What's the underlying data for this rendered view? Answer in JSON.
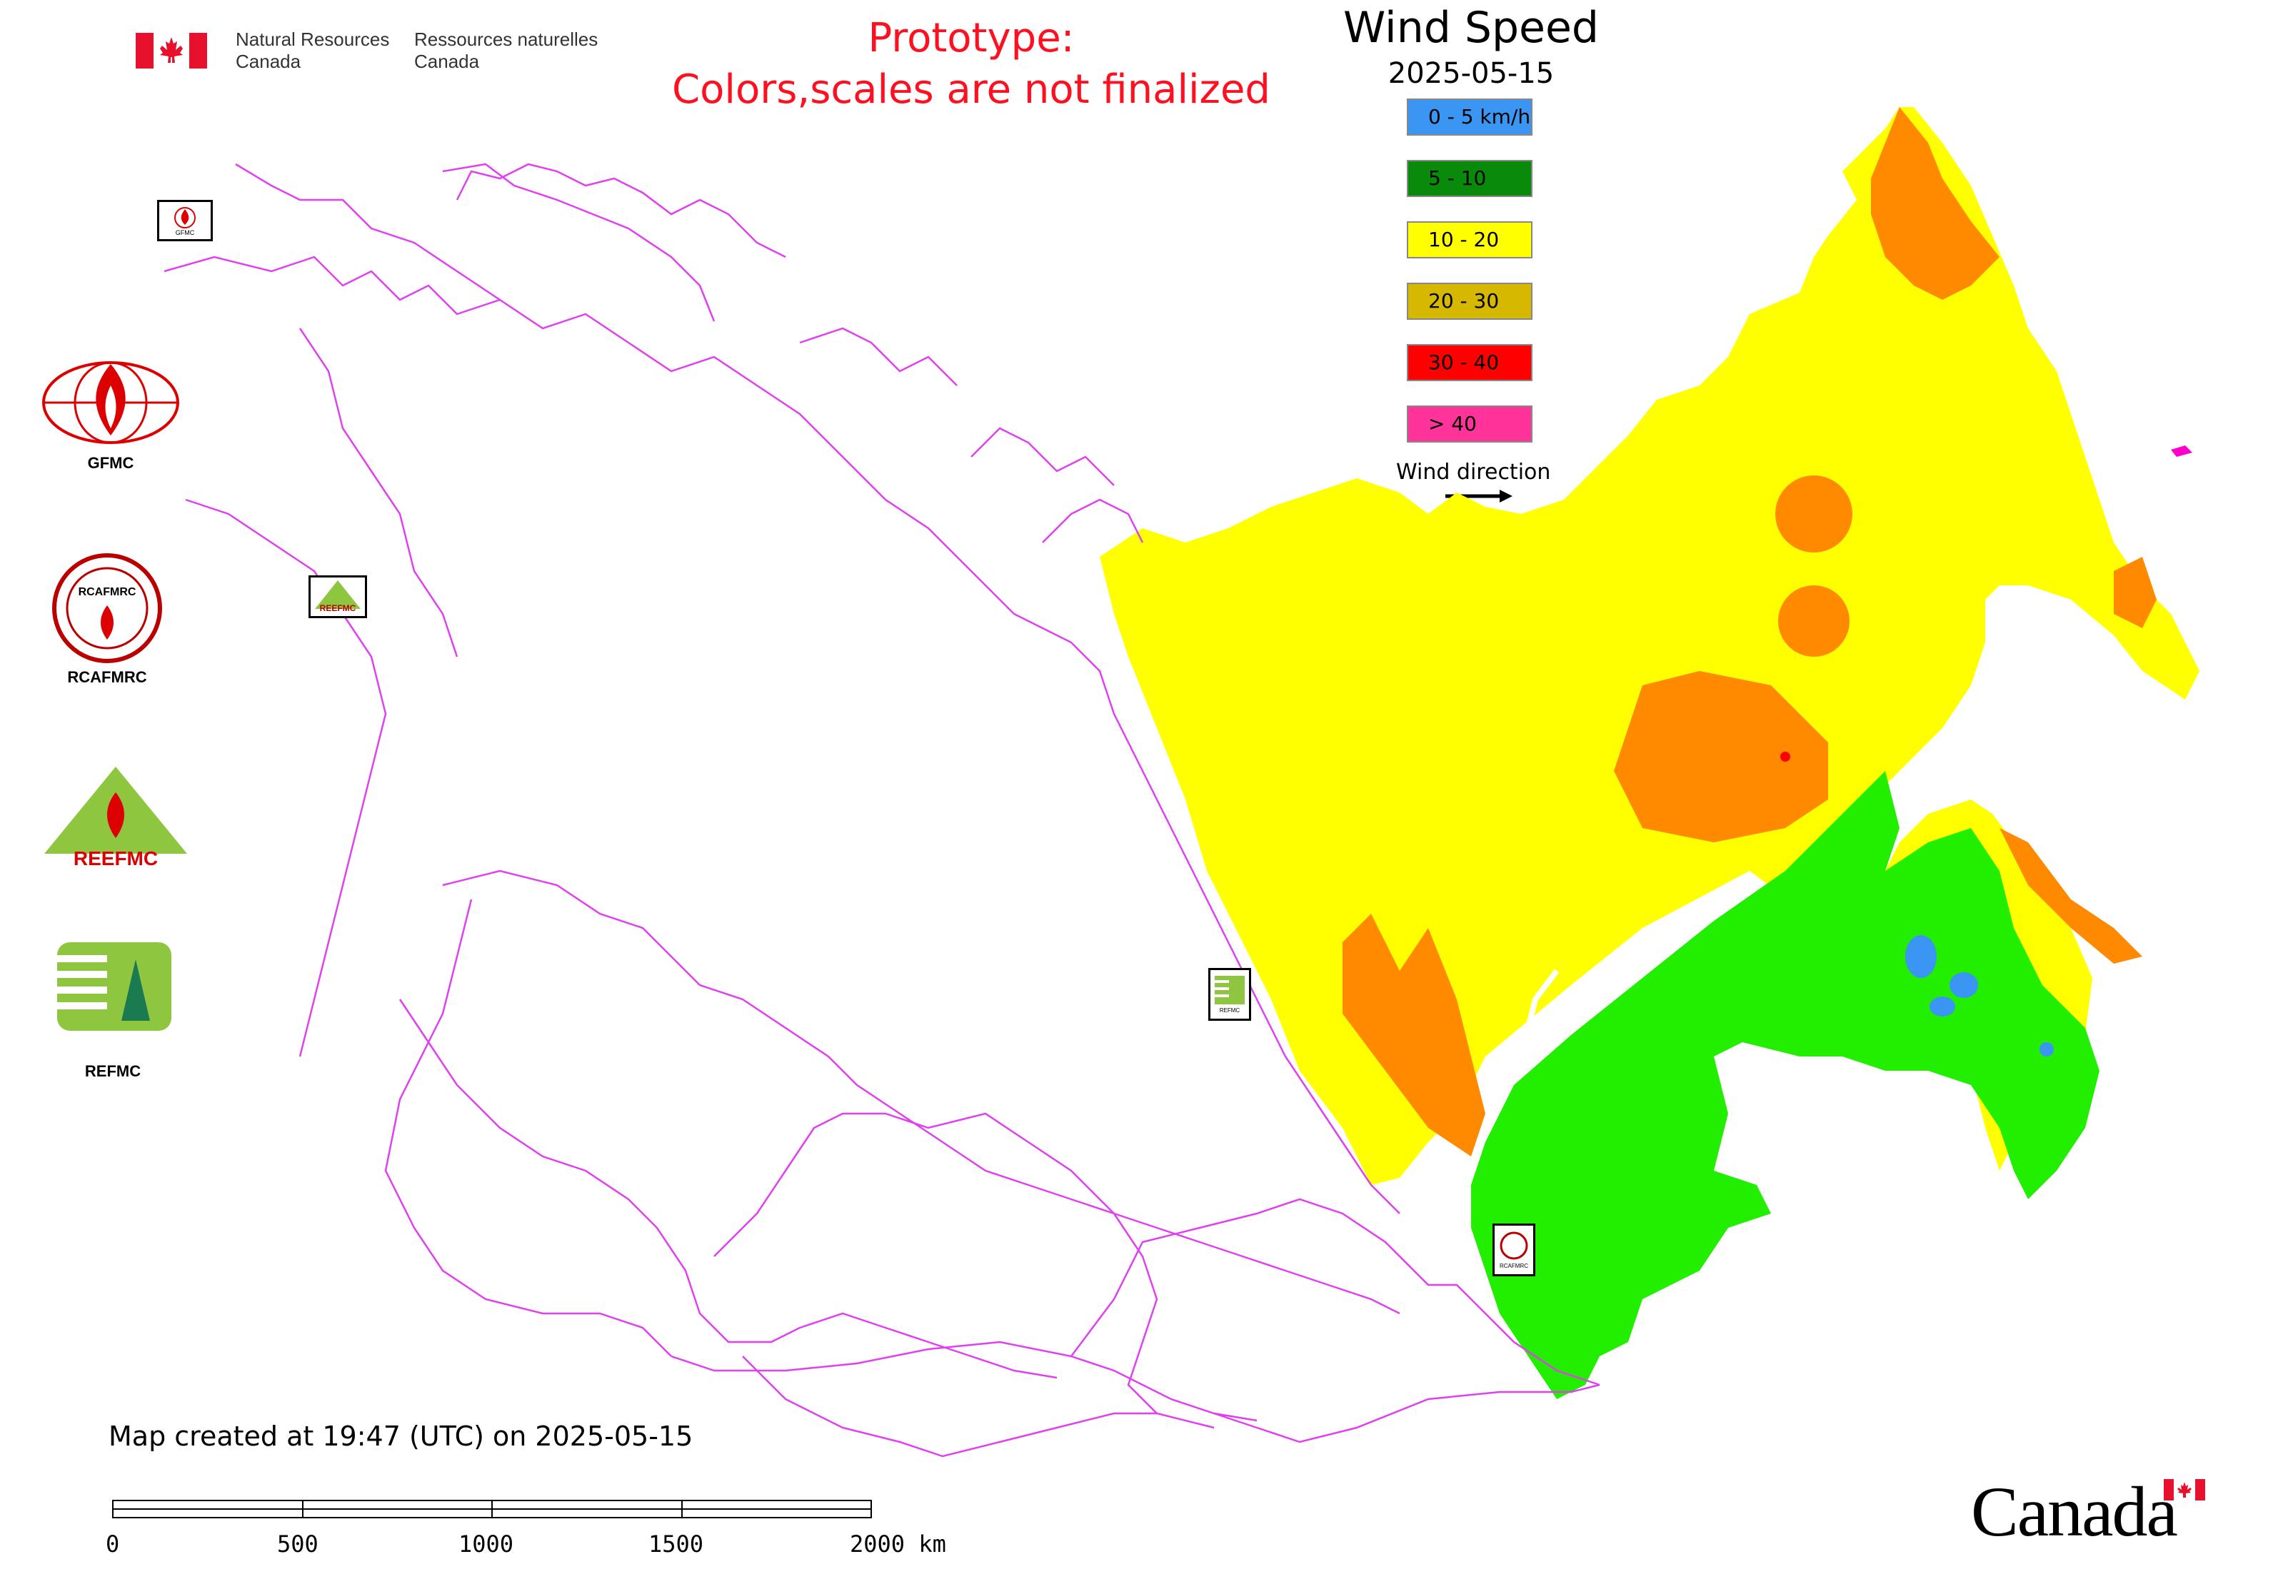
{
  "header": {
    "dept_en_line1": "Natural Resources",
    "dept_en_line2": "Canada",
    "dept_fr_line1": "Ressources naturelles",
    "dept_fr_line2": "Canada",
    "prototype_line1": "Prototype:",
    "prototype_line2": "Colors,scales are not finalized"
  },
  "map": {
    "title": "Wind Speed",
    "date": "2025-05-15",
    "legend": [
      {
        "label": "0 - 5 km/h",
        "color": "#3a96f2"
      },
      {
        "label": "5 - 10",
        "color": "#0a8a0a"
      },
      {
        "label": "10 - 20",
        "color": "#ffff00"
      },
      {
        "label": "20 - 30",
        "color": "#d6b800"
      },
      {
        "label": "30 - 40",
        "color": "#ff0000"
      },
      {
        "label": "> 40",
        "color": "#ff3399"
      }
    ],
    "wind_direction_label": "Wind direction",
    "created_text": "Map created at 19:47 (UTC) on 2025-05-15",
    "colors": {
      "boundary": "#e040f0",
      "zone_yellow": "#ffff00",
      "zone_orange": "#ff8a00",
      "zone_green": "#22ee00",
      "zone_blue": "#3a96f2",
      "zone_red": "#ff0000",
      "zone_magenta": "#ff00cc"
    }
  },
  "logos": {
    "gfmc": "GFMC",
    "rcafmrc": "RCAFMRC",
    "reefmc": "REEFMC",
    "refmc": "REFMC",
    "small_gfmc": "GFMC",
    "small_reefmc": "REEFMC",
    "small_refmc": "REFMC",
    "small_rcafmrc": "RCAFMRC",
    "rcafmrc_emblem": "RCAFMRC",
    "reefmc_emblem": "REEFMC"
  },
  "scalebar": {
    "ticks": [
      "0",
      "500",
      "1000",
      "1500",
      "2000 km"
    ]
  },
  "footer": {
    "wordmark": "Canada"
  },
  "icons": [
    "canada-flag-icon",
    "arrow-right-icon",
    "flame-icon",
    "canada-wordmark-flag-icon"
  ]
}
